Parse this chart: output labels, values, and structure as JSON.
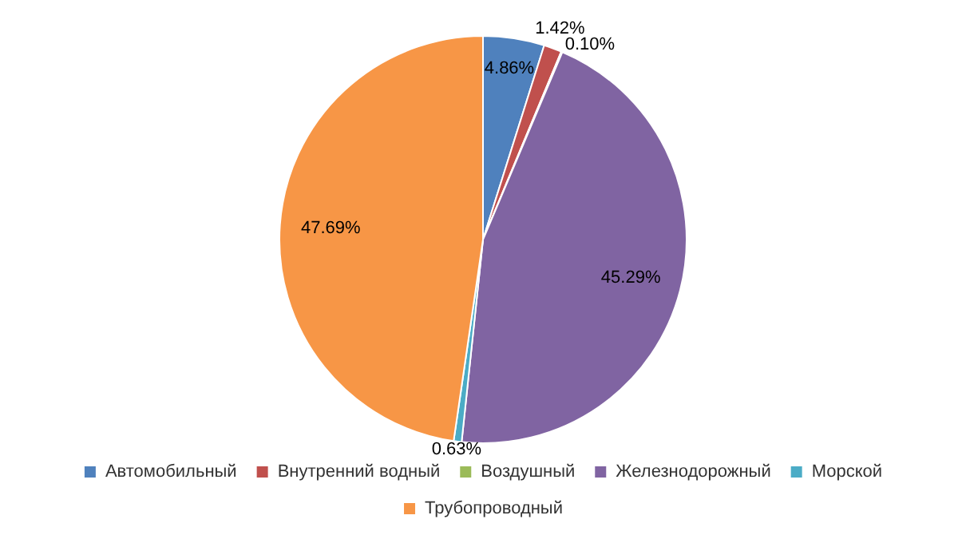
{
  "chart_data": {
    "type": "pie",
    "categories": [
      "Автомобильный",
      "Внутренний водный",
      "Воздушный",
      "Железнодорожный",
      "Морской",
      "Трубопроводный"
    ],
    "values": [
      4.86,
      1.42,
      0.1,
      45.29,
      0.63,
      47.69
    ],
    "colors": [
      "#4f81bd",
      "#c0504d",
      "#9bbb59",
      "#8064a2",
      "#4bacc6",
      "#f79646"
    ],
    "value_labels": [
      "4.86%",
      "1.42%",
      "0.10%",
      "45.29%",
      "0.63%",
      "47.69%"
    ],
    "legend": "bottom"
  }
}
